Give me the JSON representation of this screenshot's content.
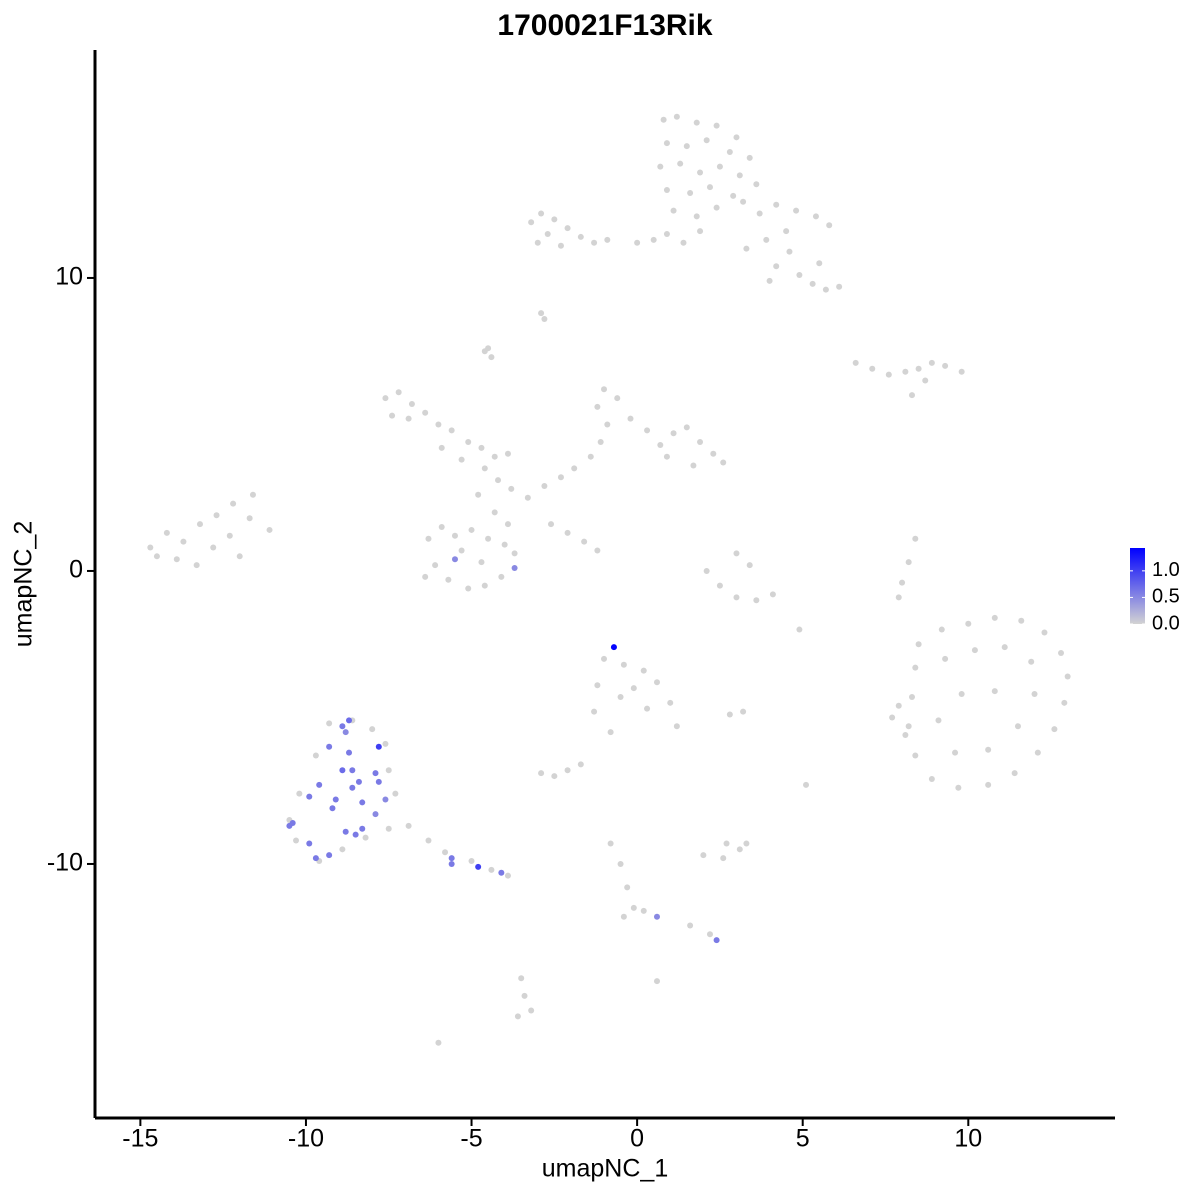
{
  "chart_data": {
    "type": "scatter",
    "title": "1700021F13Rik",
    "x_label": "umapNC_1",
    "y_label": "umapNC_2",
    "xlim": [
      -16.37,
      14.43
    ],
    "ylim": [
      -18.67,
      17.78
    ],
    "xticks": [
      -15,
      -10,
      -5,
      0,
      5,
      10
    ],
    "yticks": [
      -10,
      0,
      10
    ],
    "grid": false,
    "low_color": "#d3d3d3",
    "high_color": "#0000ff",
    "colorbar": {
      "lim": [
        0,
        1.43
      ],
      "ticks": [
        {
          "value": 0,
          "label": "0.0"
        },
        {
          "value": 0.5,
          "label": "0.5"
        },
        {
          "value": 1,
          "label": "1.0"
        }
      ]
    },
    "x": [
      0.8,
      1.2,
      1.8,
      2.4,
      3.0,
      0.9,
      1.5,
      2.1,
      2.8,
      3.4,
      0.7,
      1.3,
      1.9,
      2.5,
      3.1,
      3.6,
      0.9,
      1.6,
      2.2,
      2.9,
      1.1,
      1.8,
      2.4,
      3.2,
      3.7,
      4.2,
      4.8,
      5.4,
      5.8,
      4.5,
      3.9,
      4.6,
      4.2,
      4.9,
      5.3,
      5.7,
      6.1,
      5.5,
      3.3,
      4.0,
      -3.2,
      -2.9,
      -2.5,
      -2.1,
      -1.7,
      -1.3,
      -0.9,
      -2.7,
      -3.0,
      -2.3,
      0.0,
      0.5,
      0.9,
      1.4,
      1.9,
      -2.9,
      -2.8,
      -4.5,
      -4.4,
      -4.6,
      6.6,
      7.1,
      7.6,
      8.1,
      8.5,
      8.9,
      9.3,
      9.8,
      8.7,
      8.3,
      -7.6,
      -7.2,
      -6.8,
      -6.4,
      -6.0,
      -5.6,
      -5.1,
      -4.7,
      -4.3,
      -3.9,
      -7.4,
      -6.9,
      -5.9,
      -5.3,
      -4.6,
      -4.2,
      -3.8,
      -3.3,
      -2.8,
      -2.3,
      -1.9,
      -1.4,
      -1.1,
      -0.9,
      -1.2,
      -1.0,
      -0.6,
      -0.2,
      0.3,
      0.7,
      1.1,
      1.5,
      1.9,
      2.3,
      2.6,
      1.7,
      0.9,
      -4.8,
      -4.3,
      -3.9,
      -6.3,
      -5.9,
      -5.5,
      -5.0,
      -4.5,
      -4.0,
      -3.7,
      -6.1,
      -5.7,
      -5.1,
      -4.6,
      -4.1,
      -5.3,
      -4.7,
      -6.4,
      -14.7,
      -14.2,
      -13.7,
      -13.2,
      -12.7,
      -12.2,
      -11.6,
      -13.9,
      -13.3,
      -12.8,
      -12.3,
      -11.7,
      -11.1,
      -12.0,
      -14.5,
      -2.6,
      -2.1,
      -1.6,
      -1.2,
      2.1,
      2.5,
      3.0,
      3.6,
      4.1,
      3.0,
      3.4,
      8.0,
      8.2,
      8.4,
      7.9,
      4.9,
      2.8,
      3.2,
      5.1,
      3.3,
      8.5,
      9.2,
      10.0,
      10.8,
      11.6,
      12.3,
      12.8,
      13.0,
      12.9,
      12.6,
      12.1,
      11.4,
      10.6,
      9.7,
      8.9,
      8.4,
      8.2,
      8.3,
      8.4,
      9.3,
      10.2,
      11.1,
      11.9,
      12.0,
      11.5,
      10.6,
      9.6,
      9.1,
      9.8,
      10.8,
      7.9,
      8.1,
      7.7,
      -1.0,
      -0.4,
      0.2,
      0.6,
      1.0,
      1.2,
      0.3,
      -0.5,
      -1.2,
      -1.3,
      -0.8,
      -0.1,
      -1.7,
      -2.5,
      -2.1,
      -2.9,
      2.7,
      -9.3,
      -8.6,
      -8.0,
      -7.6,
      -7.5,
      -7.3,
      -9.7,
      -10.2,
      -10.5,
      -10.3,
      -9.6,
      -8.9,
      -8.2,
      -7.5,
      -6.9,
      -6.3,
      -5.8,
      -5.0,
      -4.4,
      -3.9,
      2.0,
      2.6,
      3.1,
      -0.8,
      -0.5,
      -0.3,
      -0.1,
      -0.4,
      0.2,
      1.6,
      2.2,
      -3.5,
      -3.4,
      -3.2,
      -3.6,
      -6.0,
      0.6,
      -8.9,
      -8.7,
      -8.8,
      -9.3,
      -7.8,
      -8.7,
      -8.9,
      -8.6,
      -7.9,
      -8.4,
      -9.6,
      -8.6,
      -7.8,
      -9.1,
      -7.6,
      -9.9,
      -9.2,
      -8.3,
      -7.9,
      -10.4,
      -10.5,
      -9.9,
      -9.7,
      -9.3,
      -8.8,
      -8.5,
      -8.3,
      -5.6,
      -5.6,
      -4.8,
      -4.1,
      -5.5,
      -3.7,
      -0.7,
      0.6,
      2.4
    ],
    "y": [
      15.4,
      15.5,
      15.3,
      15.2,
      14.8,
      14.6,
      14.5,
      14.7,
      14.3,
      14.1,
      13.8,
      13.9,
      13.6,
      13.8,
      13.5,
      13.2,
      13.0,
      12.9,
      13.1,
      12.8,
      12.3,
      12.1,
      12.4,
      12.6,
      12.2,
      12.5,
      12.3,
      12.1,
      11.8,
      11.6,
      11.3,
      10.9,
      10.4,
      10.1,
      9.8,
      9.6,
      9.7,
      10.5,
      11.0,
      9.9,
      11.9,
      12.2,
      12.0,
      11.7,
      11.4,
      11.2,
      11.3,
      11.5,
      11.2,
      11.1,
      11.2,
      11.3,
      11.5,
      11.2,
      11.6,
      8.8,
      8.6,
      7.6,
      7.3,
      7.5,
      7.1,
      6.9,
      6.7,
      6.8,
      6.9,
      7.1,
      7.0,
      6.8,
      6.5,
      6.0,
      5.9,
      6.1,
      5.7,
      5.4,
      5.0,
      4.8,
      4.4,
      4.2,
      3.9,
      4.0,
      5.3,
      5.2,
      4.2,
      3.8,
      3.5,
      3.1,
      2.8,
      2.5,
      2.9,
      3.2,
      3.5,
      3.9,
      4.4,
      5.0,
      5.6,
      6.2,
      5.9,
      5.2,
      4.8,
      4.3,
      4.7,
      4.9,
      4.4,
      4.0,
      3.7,
      3.6,
      3.9,
      2.6,
      2.0,
      1.6,
      1.1,
      1.5,
      1.2,
      1.4,
      1.1,
      0.9,
      0.6,
      0.2,
      -0.3,
      -0.6,
      -0.5,
      -0.2,
      0.7,
      0.3,
      -0.2,
      0.8,
      1.3,
      1.0,
      1.6,
      1.9,
      2.3,
      2.6,
      0.4,
      0.2,
      0.8,
      1.2,
      1.8,
      1.4,
      0.5,
      0.5,
      1.6,
      1.3,
      1.0,
      0.7,
      0.0,
      -0.5,
      -0.9,
      -1.0,
      -0.8,
      0.6,
      0.2,
      -0.4,
      0.3,
      1.1,
      -0.9,
      -2.0,
      -4.9,
      -4.8,
      -7.3,
      -9.3,
      -2.5,
      -2.0,
      -1.8,
      -1.6,
      -1.7,
      -2.1,
      -2.8,
      -3.6,
      -4.5,
      -5.4,
      -6.2,
      -6.9,
      -7.3,
      -7.4,
      -7.1,
      -6.3,
      -5.3,
      -4.3,
      -3.3,
      -3.0,
      -2.7,
      -2.6,
      -3.1,
      -4.2,
      -5.3,
      -6.1,
      -6.2,
      -5.1,
      -4.2,
      -4.1,
      -4.6,
      -5.6,
      -5.0,
      -3.0,
      -3.2,
      -3.4,
      -3.8,
      -4.5,
      -5.3,
      -4.7,
      -4.3,
      -3.9,
      -4.8,
      -5.5,
      -4.0,
      -6.6,
      -7.0,
      -6.8,
      -6.9,
      -9.3,
      -5.2,
      -5.1,
      -5.4,
      -5.9,
      -6.8,
      -7.6,
      -6.3,
      -7.6,
      -8.5,
      -9.2,
      -9.9,
      -9.5,
      -9.1,
      -8.8,
      -8.7,
      -9.2,
      -9.6,
      -9.9,
      -10.2,
      -10.4,
      -9.7,
      -9.8,
      -9.5,
      -9.3,
      -10.0,
      -10.8,
      -11.5,
      -11.8,
      -11.6,
      -12.1,
      -12.4,
      -13.9,
      -14.5,
      -15.0,
      -15.2,
      -16.1,
      -14.0,
      -5.3,
      -5.1,
      -5.5,
      -6.0,
      -6.0,
      -6.2,
      -6.8,
      -6.8,
      -6.9,
      -7.2,
      -7.3,
      -7.4,
      -7.2,
      -7.8,
      -7.8,
      -7.7,
      -8.1,
      -7.9,
      -8.3,
      -8.6,
      -8.7,
      -9.3,
      -9.8,
      -9.7,
      -8.9,
      -9.0,
      -8.8,
      -9.8,
      -10.0,
      -10.1,
      -10.3,
      0.4,
      0.1,
      -2.6,
      -11.8,
      -12.6
    ],
    "expression": [
      0,
      0,
      0,
      0,
      0,
      0,
      0,
      0,
      0,
      0,
      0,
      0,
      0,
      0,
      0,
      0,
      0,
      0,
      0,
      0,
      0,
      0,
      0,
      0,
      0,
      0,
      0,
      0,
      0,
      0,
      0,
      0,
      0,
      0,
      0,
      0,
      0,
      0,
      0,
      0,
      0,
      0,
      0,
      0,
      0,
      0,
      0,
      0,
      0,
      0,
      0,
      0,
      0,
      0,
      0,
      0,
      0,
      0,
      0,
      0,
      0,
      0,
      0,
      0,
      0,
      0,
      0,
      0,
      0,
      0,
      0,
      0,
      0,
      0,
      0,
      0,
      0,
      0,
      0,
      0,
      0,
      0,
      0,
      0,
      0,
      0,
      0,
      0,
      0,
      0,
      0,
      0,
      0,
      0,
      0,
      0,
      0,
      0,
      0,
      0,
      0,
      0,
      0,
      0,
      0,
      0,
      0,
      0,
      0,
      0,
      0,
      0,
      0,
      0,
      0,
      0,
      0,
      0,
      0,
      0,
      0,
      0,
      0,
      0,
      0,
      0,
      0,
      0,
      0,
      0,
      0,
      0,
      0,
      0,
      0,
      0,
      0,
      0,
      0,
      0,
      0,
      0,
      0,
      0,
      0,
      0,
      0,
      0,
      0,
      0,
      0,
      0,
      0,
      0,
      0,
      0,
      0,
      0,
      0,
      0,
      0,
      0,
      0,
      0,
      0,
      0,
      0,
      0,
      0,
      0,
      0,
      0,
      0,
      0,
      0,
      0,
      0,
      0,
      0,
      0,
      0,
      0,
      0,
      0,
      0,
      0,
      0,
      0,
      0,
      0,
      0,
      0,
      0,
      0,
      0,
      0,
      0,
      0,
      0,
      0,
      0,
      0,
      0,
      0,
      0,
      0,
      0,
      0,
      0,
      0,
      0,
      0,
      0,
      0,
      0,
      0,
      0,
      0,
      0,
      0,
      0,
      0,
      0,
      0,
      0,
      0,
      0,
      0,
      0,
      0,
      0,
      0,
      0,
      0,
      0,
      0,
      0,
      0,
      0,
      0,
      0,
      0,
      0,
      0,
      0,
      0,
      0,
      0.6,
      0.7,
      0.5,
      0.6,
      1.0,
      0.6,
      0.7,
      0.6,
      0.6,
      0.6,
      0.6,
      0.6,
      0.6,
      0.6,
      0.5,
      0.6,
      0.6,
      0.6,
      0.5,
      0.6,
      0.6,
      0.6,
      0.6,
      0.6,
      0.6,
      0.6,
      0.6,
      0.6,
      0.6,
      1.0,
      0.6,
      0.5,
      0.5,
      1.4,
      0.5,
      0.6
    ]
  }
}
